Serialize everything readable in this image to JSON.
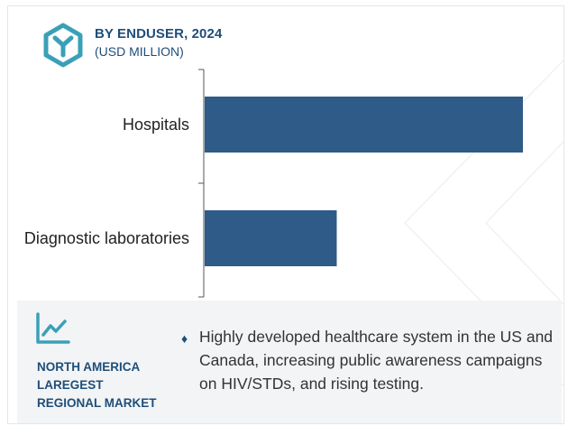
{
  "header": {
    "title": "BY ENDUSER, 2024",
    "subtitle": "(USD MILLION)",
    "logo_icon": "hexagon-y-logo-icon",
    "accent_color": "#1f4e79"
  },
  "chart_data": {
    "type": "bar",
    "orientation": "horizontal",
    "title": "BY ENDUSER, 2024",
    "subtitle": "(USD MILLION)",
    "categories": [
      "Hospitals",
      "Diagnostic laboratories"
    ],
    "values": [
      100,
      41.5
    ],
    "xlim": [
      0,
      100
    ],
    "value_axis_labels_shown": false,
    "grid": false,
    "bar_color": "#2e5b87"
  },
  "insight": {
    "icon": "trend-up-chart-icon",
    "region_lines": [
      "NORTH AMERICA",
      "LAREGEST",
      "REGIONAL MARKET"
    ],
    "bullet": "♦",
    "text": "Highly developed healthcare system in the US and Canada, increasing public awareness campaigns on HIV/STDs, and rising testing."
  }
}
